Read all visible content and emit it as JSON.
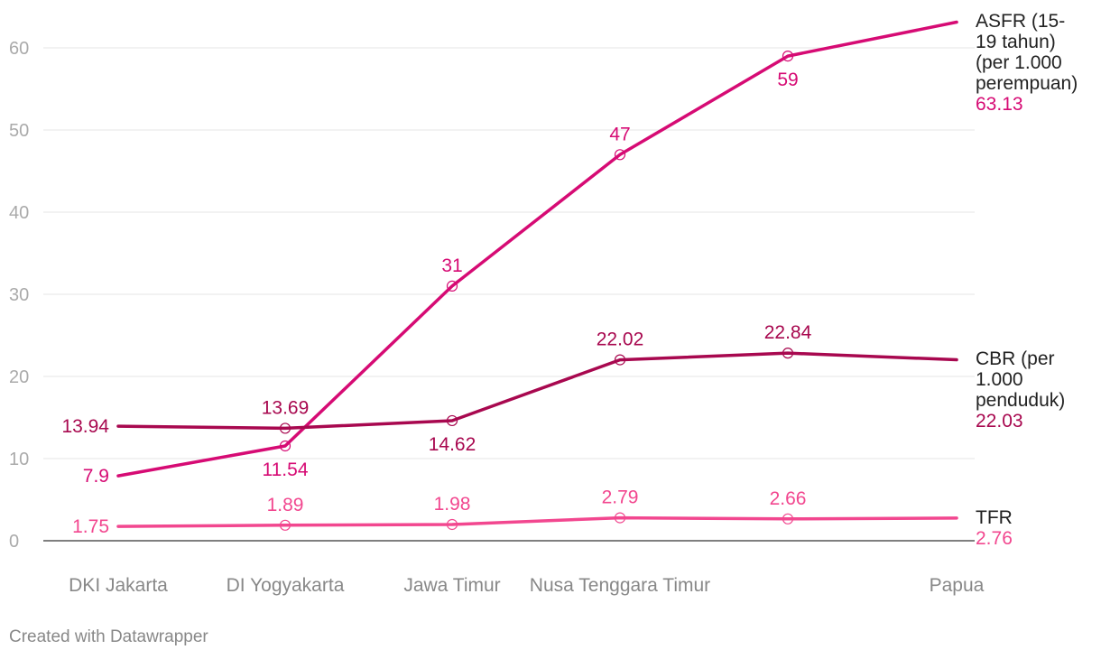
{
  "chart_data": {
    "type": "line",
    "categories": [
      "DKI Jakarta",
      "DI Yogyakarta",
      "Jawa Timur",
      "Nusa Tenggara Timur",
      "",
      "Papua"
    ],
    "category_labels": [
      "DKI Jakarta",
      "DI Yogyakarta",
      "Jawa Timur",
      "Nusa Tenggara Timur",
      "Papua"
    ],
    "ylim": [
      0,
      63
    ],
    "yticks": [
      0,
      10,
      20,
      30,
      40,
      50,
      60
    ],
    "grid": true,
    "series": [
      {
        "name": "ASFR (15-19 tahun) (per 1.000 perempuan)",
        "name_lines": [
          "ASFR (15-",
          "19 tahun)",
          "(per 1.000",
          "perempuan)"
        ],
        "values": [
          7.9,
          11.54,
          31,
          47,
          59,
          63.13
        ],
        "point_labels": [
          "7.9",
          "11.54",
          "31",
          "47",
          "59",
          null
        ],
        "end_label": "63.13",
        "color": "#d60b74"
      },
      {
        "name": "CBR (per 1.000 penduduk)",
        "name_lines": [
          "CBR (per",
          "1.000",
          "penduduk)"
        ],
        "values": [
          13.94,
          13.69,
          14.62,
          22.02,
          22.84,
          22.03
        ],
        "point_labels": [
          "13.94",
          "13.69",
          "14.62",
          "22.02",
          "22.84",
          null
        ],
        "end_label": "22.03",
        "color": "#a8084f"
      },
      {
        "name": "TFR",
        "name_lines": [
          "TFR"
        ],
        "values": [
          1.75,
          1.89,
          1.98,
          2.79,
          2.66,
          2.76
        ],
        "point_labels": [
          "1.75",
          "1.89",
          "1.98",
          "2.79",
          "2.66",
          null
        ],
        "end_label": "2.76",
        "color": "#f2478f"
      }
    ],
    "colors": {
      "axis_text": "#aaaaaa",
      "category_text": "#888888",
      "grid": "#e4e4e4",
      "baseline": "#333333",
      "series_title": "#222222"
    }
  },
  "footer": {
    "credit": "Created with Datawrapper"
  }
}
